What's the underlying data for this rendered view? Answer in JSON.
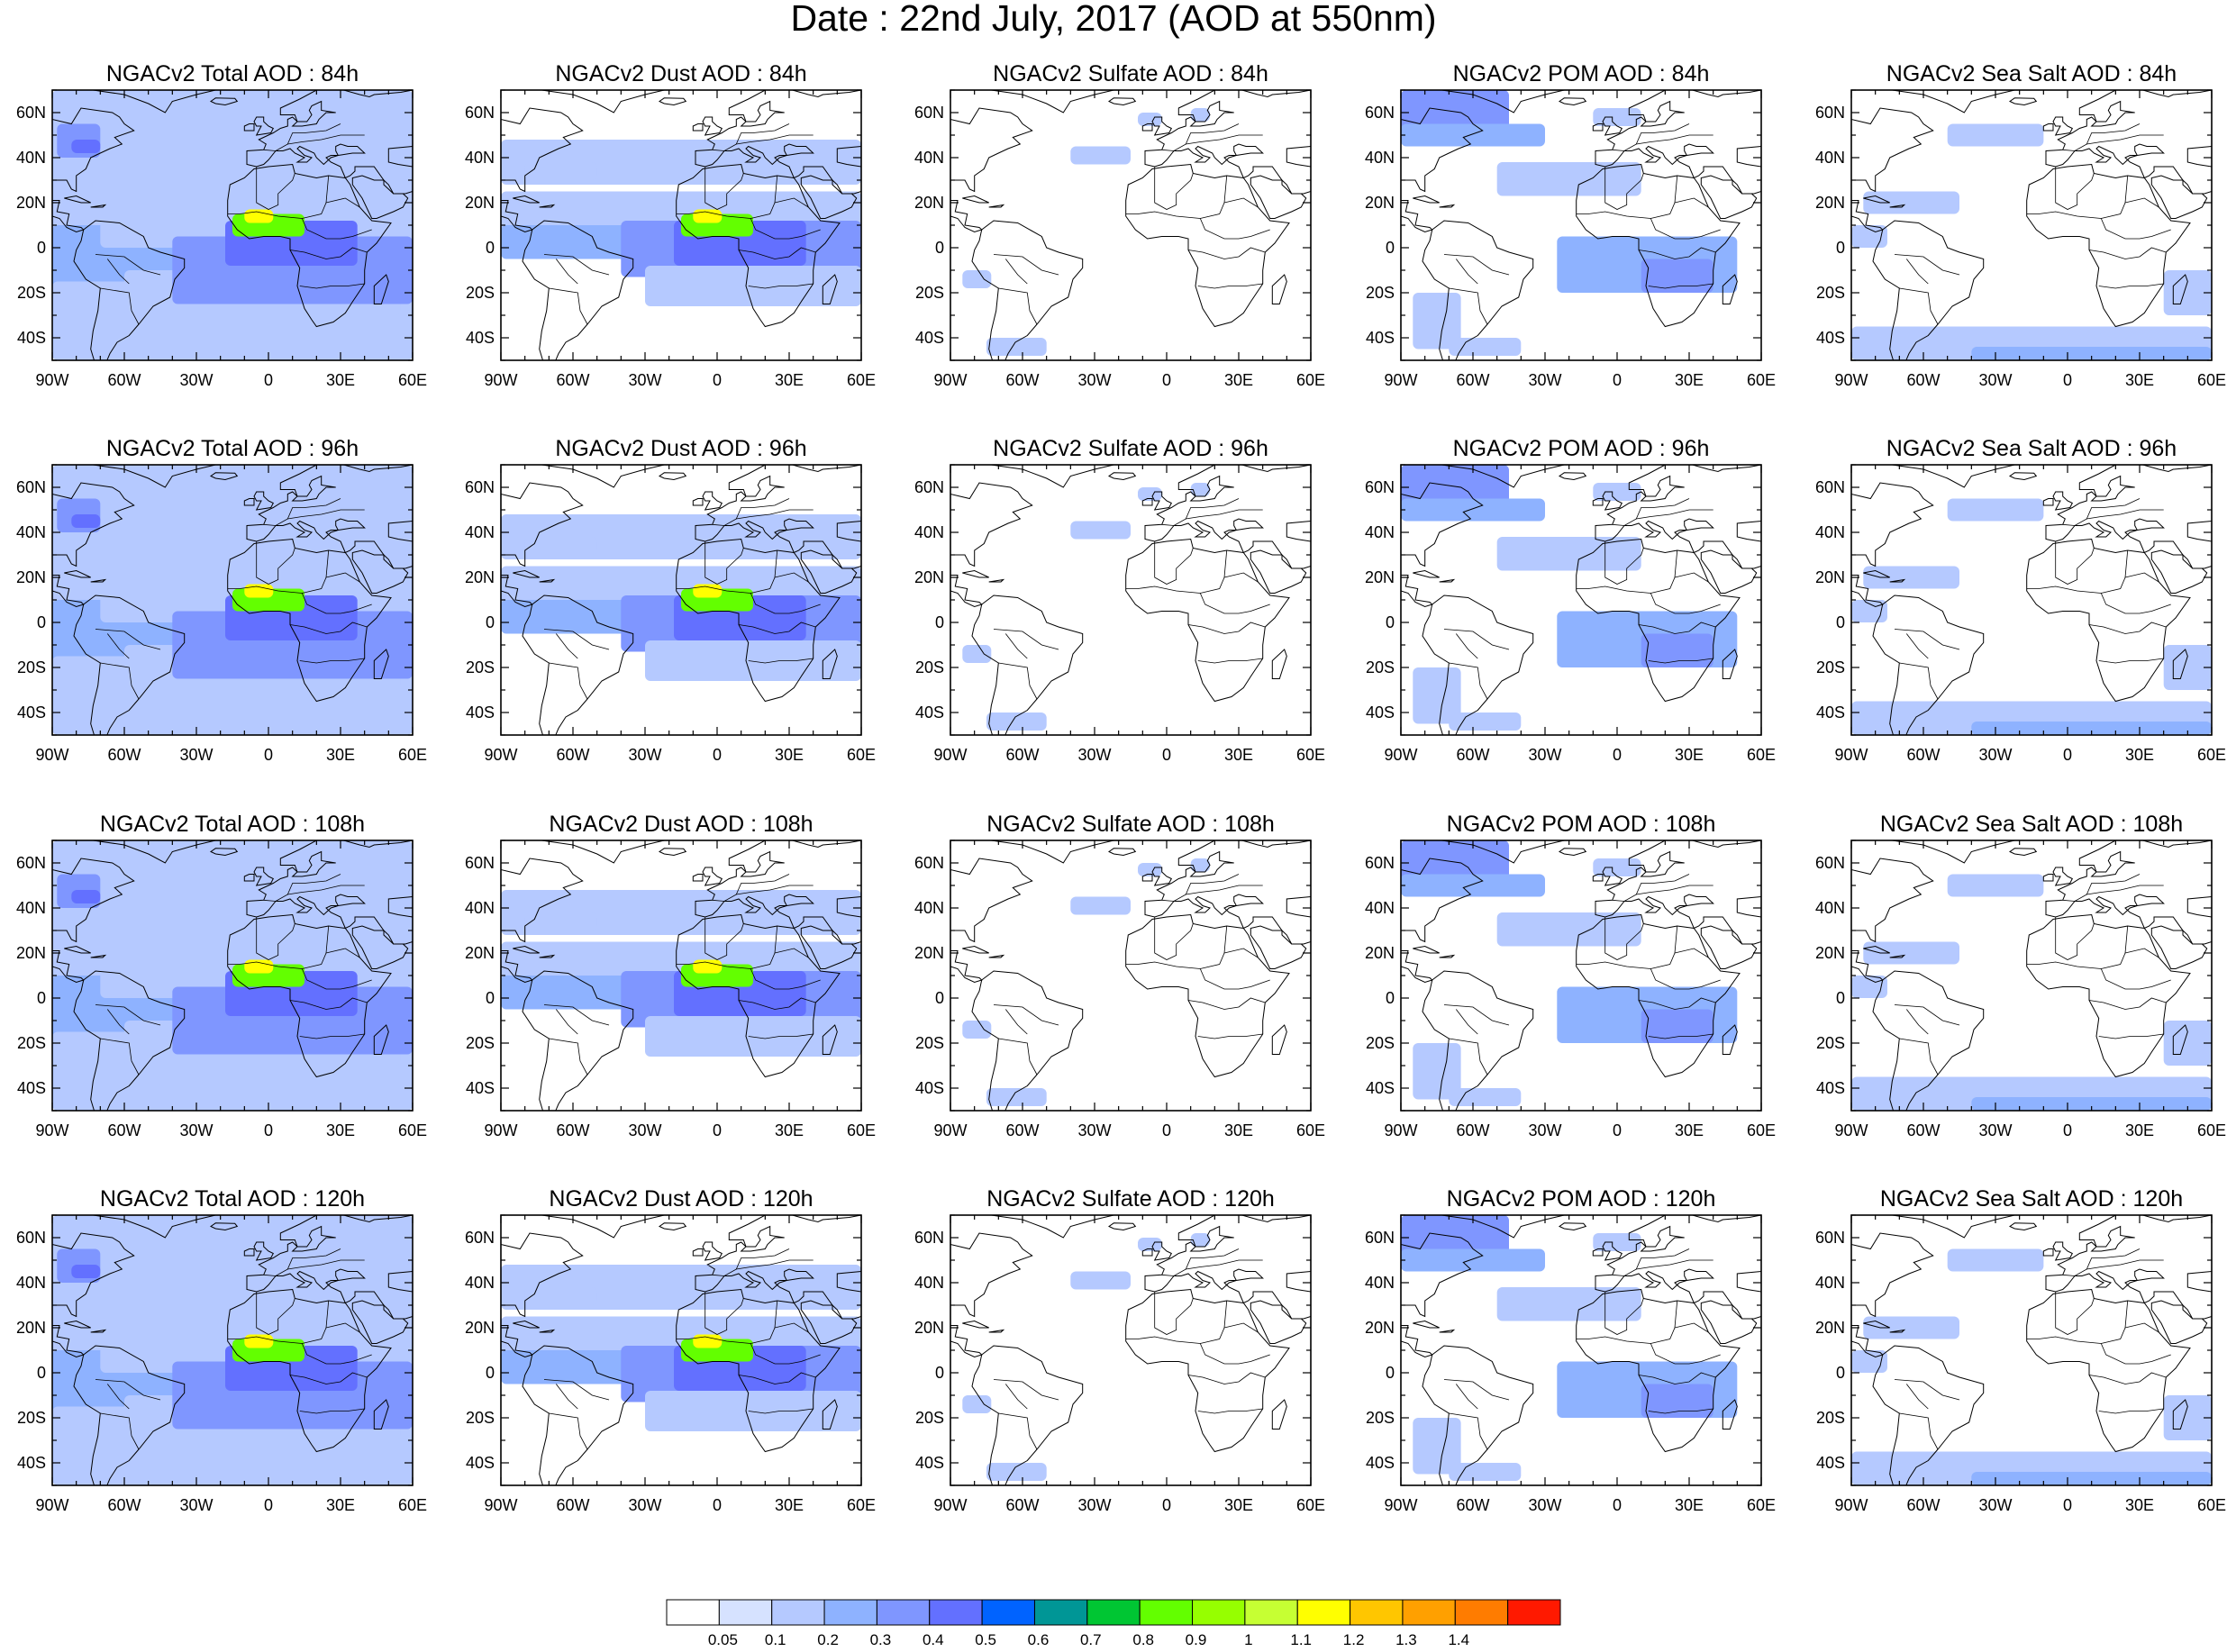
{
  "title": "Date : 22nd July, 2017 (AOD at 550nm)",
  "panel_rows": [
    [
      "NGACv2 Total AOD : 84h",
      "NGACv2 Dust AOD : 84h",
      "NGACv2 Sulfate AOD : 84h",
      "NGACv2 POM AOD : 84h",
      "NGACv2 Sea Salt AOD : 84h"
    ],
    [
      "NGACv2 Total AOD : 96h",
      "NGACv2 Dust AOD : 96h",
      "NGACv2 Sulfate AOD : 96h",
      "NGACv2 POM AOD : 96h",
      "NGACv2 Sea Salt AOD : 96h"
    ],
    [
      "NGACv2 Total AOD : 108h",
      "NGACv2 Dust AOD : 108h",
      "NGACv2 Sulfate AOD : 108h",
      "NGACv2 POM AOD : 108h",
      "NGACv2 Sea Salt AOD : 108h"
    ],
    [
      "NGACv2 Total AOD : 120h",
      "NGACv2 Dust AOD : 120h",
      "NGACv2 Sulfate AOD : 120h",
      "NGACv2 POM AOD : 120h",
      "NGACv2 Sea Salt  AOD : 120h"
    ]
  ],
  "map": {
    "lon_range": [
      -90,
      60
    ],
    "lat_range": [
      -50,
      70
    ],
    "lon_ticks": [
      -90,
      -60,
      -30,
      0,
      30,
      60
    ],
    "lat_ticks": [
      60,
      40,
      20,
      0,
      -20,
      -40
    ],
    "lon_tick_labels": [
      "90W",
      "60W",
      "30W",
      "0",
      "30E",
      "60E"
    ],
    "lat_tick_labels": [
      "60N",
      "40N",
      "20N",
      "0",
      "20S",
      "40S"
    ]
  },
  "colorbar": {
    "labels": [
      "0.05",
      "0.1",
      "0.2",
      "0.3",
      "0.4",
      "0.5",
      "0.6",
      "0.7",
      "0.8",
      "0.9",
      "1",
      "1.1",
      "1.2",
      "1.3",
      "1.4"
    ],
    "colors": [
      "#ffffff",
      "#d6e2ff",
      "#b5c9ff",
      "#8eb2ff",
      "#7f96ff",
      "#6370ff",
      "#0063ff",
      "#009696",
      "#00c633",
      "#63ff00",
      "#96ff00",
      "#c6ff33",
      "#ffff00",
      "#ffc600",
      "#ffa000",
      "#ff7c00",
      "#ff1900"
    ]
  },
  "colors": {
    "frame": "#000000",
    "coast": "#000000"
  }
}
